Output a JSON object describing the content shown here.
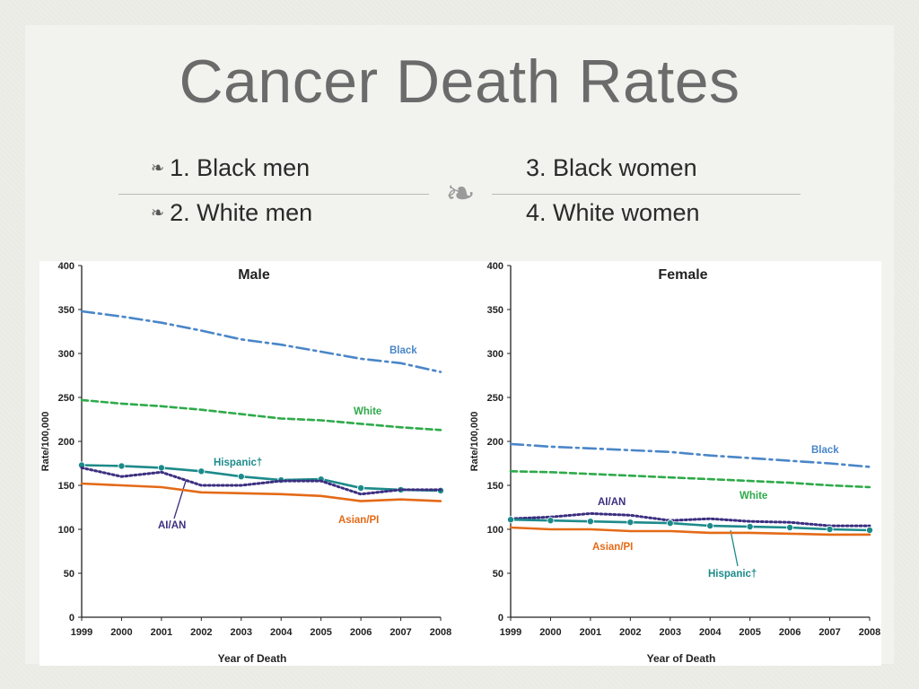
{
  "slide": {
    "title": "Cancer Death Rates",
    "bullets_left": [
      "1. Black men",
      "2. White men"
    ],
    "bullets_right": [
      "3. Black women",
      "4. White women"
    ],
    "bullet_icon": "double-curl-icon",
    "divider_icon": "curl-ornament-icon"
  },
  "chart_data": [
    {
      "type": "line",
      "title": "Male",
      "xlabel": "Year of Death",
      "ylabel": "Rate/100,000",
      "ylim": [
        0,
        400
      ],
      "yticks": [
        0,
        50,
        100,
        150,
        200,
        250,
        300,
        350,
        400
      ],
      "x": [
        "1999",
        "2000",
        "2001",
        "2002",
        "2003",
        "2004",
        "2005",
        "2006",
        "2007",
        "2008"
      ],
      "series": [
        {
          "name": "Black",
          "color": "#4a86c8",
          "style": "dashdot",
          "values": [
            348,
            342,
            335,
            326,
            316,
            310,
            302,
            294,
            289,
            279
          ]
        },
        {
          "name": "White",
          "color": "#2eaa4a",
          "style": "dashed",
          "values": [
            247,
            243,
            240,
            236,
            231,
            226,
            224,
            220,
            216,
            213
          ]
        },
        {
          "name": "Hispanic†",
          "color": "#1d8a8a",
          "style": "solid-markers",
          "values": [
            173,
            172,
            170,
            166,
            160,
            156,
            157,
            147,
            145,
            144
          ]
        },
        {
          "name": "AI/AN",
          "color": "#3c2f80",
          "style": "dotted",
          "values": [
            170,
            160,
            165,
            150,
            150,
            155,
            155,
            140,
            145,
            145
          ]
        },
        {
          "name": "Asian/PI",
          "color": "#e46a17",
          "style": "solid",
          "values": [
            152,
            150,
            148,
            142,
            141,
            140,
            138,
            132,
            134,
            132
          ]
        }
      ],
      "legend": "inline labels"
    },
    {
      "type": "line",
      "title": "Female",
      "xlabel": "Year of Death",
      "ylabel": "Rate/100,000",
      "ylim": [
        0,
        400
      ],
      "yticks": [
        0,
        50,
        100,
        150,
        200,
        250,
        300,
        350,
        400
      ],
      "x": [
        "1999",
        "2000",
        "2001",
        "2002",
        "2003",
        "2004",
        "2005",
        "2006",
        "2007",
        "2008"
      ],
      "series": [
        {
          "name": "Black",
          "color": "#4a86c8",
          "style": "dashdot",
          "values": [
            197,
            194,
            192,
            190,
            188,
            184,
            181,
            178,
            175,
            171
          ]
        },
        {
          "name": "White",
          "color": "#2eaa4a",
          "style": "dashed",
          "values": [
            166,
            165,
            163,
            161,
            159,
            157,
            155,
            153,
            150,
            148
          ]
        },
        {
          "name": "AI/AN",
          "color": "#3c2f80",
          "style": "dotted",
          "values": [
            112,
            114,
            118,
            116,
            110,
            112,
            109,
            108,
            104,
            104
          ]
        },
        {
          "name": "Hispanic†",
          "color": "#1d8a8a",
          "style": "solid-markers",
          "values": [
            111,
            110,
            109,
            108,
            107,
            104,
            103,
            102,
            100,
            99
          ]
        },
        {
          "name": "Asian/PI",
          "color": "#e46a17",
          "style": "solid",
          "values": [
            102,
            100,
            100,
            98,
            98,
            96,
            96,
            95,
            94,
            94
          ]
        }
      ],
      "legend": "inline labels"
    }
  ]
}
